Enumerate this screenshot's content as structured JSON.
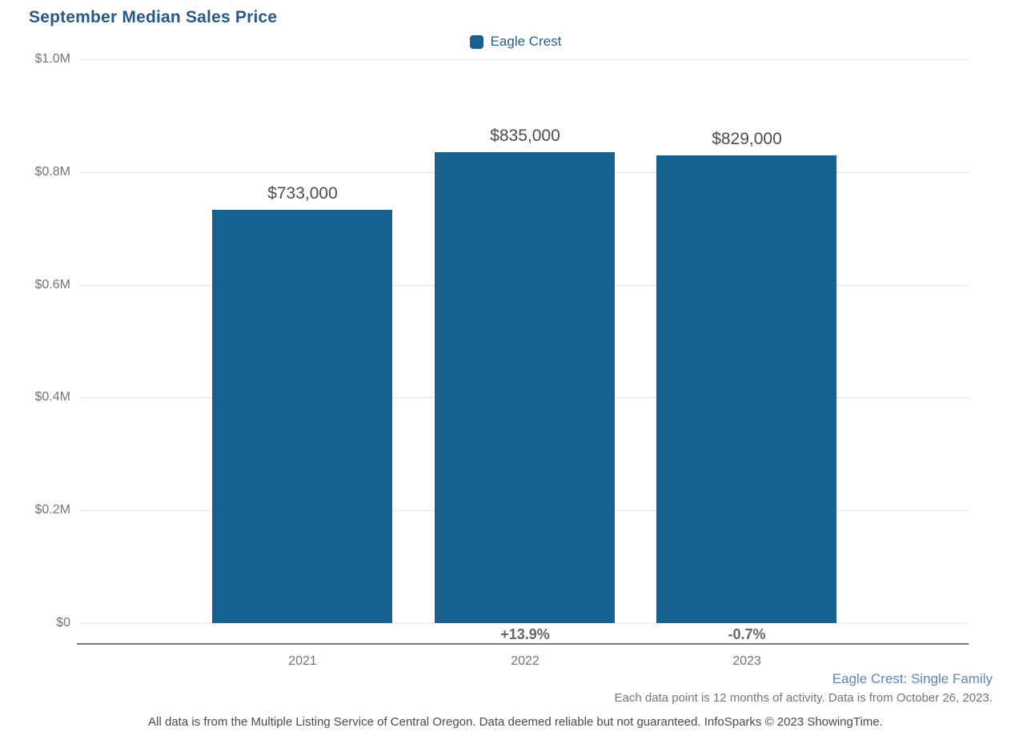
{
  "title": "September Median Sales Price",
  "legend": {
    "label": "Eagle Crest"
  },
  "chart_data": {
    "type": "bar",
    "title": "September Median Sales Price",
    "categories": [
      "2021",
      "2022",
      "2023"
    ],
    "series": [
      {
        "name": "Eagle Crest",
        "values": [
          733000,
          835000,
          829000
        ]
      }
    ],
    "value_labels": [
      "$733,000",
      "$835,000",
      "$829,000"
    ],
    "pct_change_labels": [
      "",
      "+13.9%",
      "-0.7%"
    ],
    "ylabel_ticks": [
      "$0",
      "$0.2M",
      "$0.4M",
      "$0.6M",
      "$0.8M",
      "$1.0M"
    ],
    "ylim": [
      0,
      1000000
    ],
    "xlabel": "",
    "ylabel": "",
    "grid": "horizontal",
    "legend_position": "top-center"
  },
  "footer": {
    "series_note": "Eagle Crest: Single Family",
    "data_note": "Each data point is 12 months of activity. Data is from October 26, 2023.",
    "disclaimer": "All data is from the Multiple Listing Service of Central Oregon. Data deemed reliable but not guaranteed. InfoSparks © 2023 ShowingTime."
  },
  "colors": {
    "bar": "#15618F",
    "title": "#265A88",
    "legend_text": "#2C5F83",
    "axis_text": "#757575",
    "value_label": "#4D4D4D",
    "pct_label": "#666666",
    "footer_link": "#5B87B5",
    "disclaimer": "#4A4A4A",
    "gridline": "#E4E4E4",
    "axis_line": "#7B7B7B"
  }
}
